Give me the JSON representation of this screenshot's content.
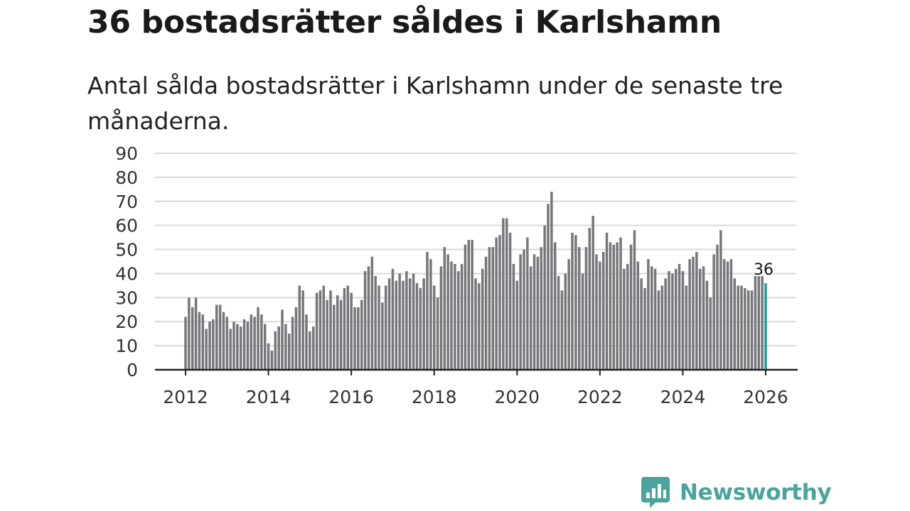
{
  "title": "36 bostadsrätter såldes i Karlshamn",
  "subtitle": "Antal sålda bostadsrätter i Karlshamn under de senaste tre månaderna.",
  "brand": {
    "name": "Newsworthy",
    "color": "#4aa39c"
  },
  "colors": {
    "bar": "#76767b",
    "highlight": "#1a9e9b"
  },
  "chart_data": {
    "type": "bar",
    "title": "36 bostadsrätter såldes i Karlshamn",
    "xlabel": "",
    "ylabel": "",
    "ylim": [
      0,
      90
    ],
    "yticks": [
      0,
      10,
      20,
      30,
      40,
      50,
      60,
      70,
      80,
      90
    ],
    "xticks": [
      "2012",
      "2014",
      "2016",
      "2018",
      "2020",
      "2022",
      "2024",
      "2026"
    ],
    "xlim": [
      2012,
      2026
    ],
    "start": "2012-01",
    "highlight_label": "36",
    "values": [
      22,
      30,
      26,
      30,
      24,
      23,
      17,
      20,
      21,
      27,
      27,
      24,
      22,
      17,
      20,
      19,
      18,
      21,
      20,
      23,
      22,
      26,
      23,
      19,
      11,
      8,
      16,
      18,
      25,
      19,
      15,
      22,
      26,
      35,
      33,
      23,
      16,
      18,
      32,
      33,
      35,
      29,
      33,
      27,
      31,
      29,
      34,
      35,
      32,
      26,
      26,
      29,
      41,
      43,
      47,
      39,
      35,
      28,
      35,
      38,
      42,
      37,
      40,
      37,
      41,
      38,
      40,
      36,
      34,
      38,
      49,
      46,
      35,
      30,
      43,
      51,
      48,
      45,
      44,
      41,
      44,
      52,
      54,
      54,
      38,
      36,
      42,
      47,
      51,
      51,
      55,
      56,
      63,
      63,
      57,
      44,
      37,
      48,
      50,
      55,
      43,
      48,
      47,
      51,
      60,
      69,
      74,
      53,
      39,
      33,
      40,
      46,
      57,
      56,
      51,
      40,
      51,
      59,
      64,
      48,
      45,
      49,
      57,
      53,
      52,
      53,
      55,
      42,
      44,
      52,
      58,
      45,
      38,
      34,
      46,
      43,
      42,
      33,
      35,
      38,
      41,
      40,
      42,
      44,
      41,
      35,
      46,
      47,
      49,
      42,
      43,
      37,
      30,
      48,
      52,
      58,
      46,
      45,
      46,
      38,
      35,
      35,
      34,
      33,
      33,
      40,
      39,
      39,
      36
    ]
  }
}
